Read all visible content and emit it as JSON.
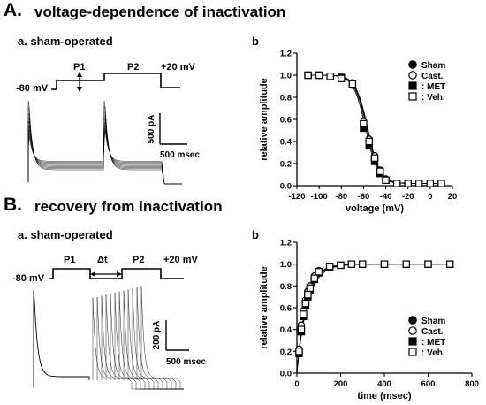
{
  "panel_A": {
    "letter": "A.",
    "title": "voltage-dependence of inactivation",
    "sub_a": "a. sham-operated",
    "sub_b": "b",
    "protocol": {
      "p1": "P1",
      "p2": "P2",
      "hold": "-80 mV",
      "test": "+20 mV"
    },
    "scale": {
      "current": "500 pA",
      "time": "500 msec"
    }
  },
  "panel_B": {
    "letter": "B.",
    "title": "recovery from inactivation",
    "sub_a": "a. sham-operated",
    "sub_b": "b",
    "protocol": {
      "p1": "P1",
      "delta": "Δt",
      "p2": "P2",
      "hold": "-80 mV",
      "test": "+20 mV"
    },
    "scale": {
      "current": "200 pA",
      "time": "500 msec"
    }
  },
  "chart_data": [
    {
      "type": "scatter",
      "panel": "A.b",
      "xlabel": "voltage (mV)",
      "ylabel": "relative amplitude",
      "xlim": [
        -120,
        20
      ],
      "ylim": [
        0,
        1.2
      ],
      "xticks": [
        "-120",
        "-100",
        "-80",
        "-60",
        "-40",
        "-20",
        "0",
        "20"
      ],
      "yticks": [
        "0.0",
        "0.2",
        "0.4",
        "0.6",
        "0.8",
        "1.0",
        "1.2"
      ],
      "legend_position": "top-right",
      "x": [
        -110,
        -100,
        -90,
        -80,
        -70,
        -60,
        -55,
        -50,
        -45,
        -40,
        -30,
        -20,
        -10,
        0,
        10
      ],
      "series": [
        {
          "name": "Sham",
          "marker": "filled-circle",
          "values": [
            1.0,
            1.0,
            0.99,
            0.98,
            0.93,
            0.55,
            0.38,
            0.24,
            0.12,
            0.05,
            0.02,
            0.02,
            0.02,
            0.02,
            0.02
          ]
        },
        {
          "name": "Cast.",
          "marker": "open-circle",
          "values": [
            1.0,
            1.0,
            0.99,
            0.97,
            0.91,
            0.58,
            0.42,
            0.27,
            0.14,
            0.06,
            0.02,
            0.02,
            0.02,
            0.02,
            0.02
          ]
        },
        {
          "name": ": MET",
          "marker": "filled-square",
          "values": [
            1.0,
            1.0,
            0.99,
            0.98,
            0.92,
            0.52,
            0.36,
            0.22,
            0.11,
            0.05,
            0.02,
            0.02,
            0.02,
            0.02,
            0.02
          ]
        },
        {
          "name": ": Veh.",
          "marker": "open-square",
          "values": [
            1.0,
            1.0,
            0.99,
            0.97,
            0.92,
            0.56,
            0.4,
            0.25,
            0.13,
            0.05,
            0.02,
            0.02,
            0.02,
            0.02,
            0.02
          ]
        }
      ],
      "fit": {
        "type": "boltzmann",
        "v_half": [
          -57,
          -56,
          -58,
          -56.5
        ],
        "k": 5.5
      }
    },
    {
      "type": "scatter",
      "panel": "B.b",
      "xlabel": "time (msec)",
      "ylabel": "relative amplitude",
      "xlim": [
        0,
        800
      ],
      "ylim": [
        0,
        1.2
      ],
      "xticks": [
        "0",
        "200",
        "400",
        "600",
        "800"
      ],
      "yticks": [
        "0.0",
        "0.2",
        "0.4",
        "0.6",
        "0.8",
        "1.0",
        "1.2"
      ],
      "legend_position": "bottom-right",
      "x": [
        10,
        20,
        30,
        40,
        50,
        60,
        80,
        100,
        150,
        200,
        250,
        300,
        400,
        500,
        600,
        700
      ],
      "series": [
        {
          "name": "Sham",
          "marker": "filled-circle",
          "values": [
            0.2,
            0.42,
            0.55,
            0.65,
            0.73,
            0.78,
            0.88,
            0.93,
            0.98,
            0.99,
            1.0,
            1.0,
            1.0,
            1.0,
            1.0,
            1.0
          ]
        },
        {
          "name": "Cast.",
          "marker": "open-circle",
          "values": [
            0.22,
            0.44,
            0.57,
            0.67,
            0.75,
            0.8,
            0.89,
            0.94,
            0.98,
            0.99,
            1.0,
            1.0,
            1.0,
            1.0,
            1.0,
            1.0
          ]
        },
        {
          "name": ": MET",
          "marker": "filled-square",
          "values": [
            0.18,
            0.38,
            0.52,
            0.62,
            0.7,
            0.76,
            0.86,
            0.92,
            0.97,
            0.99,
            1.0,
            1.0,
            1.0,
            1.0,
            1.0,
            1.0
          ]
        },
        {
          "name": ": Veh.",
          "marker": "open-square",
          "values": [
            0.2,
            0.4,
            0.54,
            0.64,
            0.72,
            0.78,
            0.87,
            0.93,
            0.98,
            0.99,
            1.0,
            1.0,
            1.0,
            1.0,
            1.0,
            1.0
          ]
        }
      ],
      "fit": {
        "type": "exponential",
        "tau": [
          44,
          42,
          48,
          45
        ]
      }
    }
  ]
}
